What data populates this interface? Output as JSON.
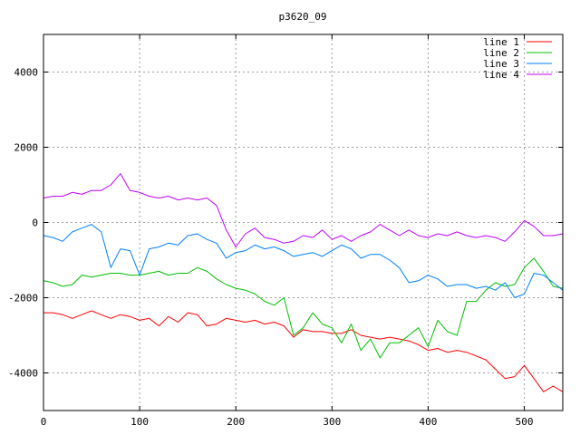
{
  "chart_data": {
    "type": "line",
    "title": "p3620_09",
    "xlabel": "",
    "ylabel": "",
    "xlim": [
      0,
      540
    ],
    "ylim": [
      -5000,
      5000
    ],
    "x_ticks": [
      0,
      100,
      200,
      300,
      400,
      500
    ],
    "y_ticks": [
      -4000,
      -2000,
      0,
      2000,
      4000
    ],
    "grid": true,
    "legend_position": "top-right",
    "series": [
      {
        "name": "line 1",
        "color": "#ff0000",
        "x": [
          0,
          10,
          20,
          30,
          40,
          50,
          60,
          70,
          80,
          90,
          100,
          110,
          120,
          130,
          140,
          150,
          160,
          170,
          180,
          190,
          200,
          210,
          220,
          230,
          240,
          250,
          260,
          270,
          280,
          290,
          300,
          310,
          320,
          330,
          340,
          350,
          360,
          370,
          380,
          390,
          400,
          410,
          420,
          430,
          440,
          450,
          460,
          470,
          480,
          490,
          500,
          510,
          520,
          530,
          540
        ],
        "y": [
          -2400,
          -2400,
          -2450,
          -2550,
          -2450,
          -2350,
          -2450,
          -2550,
          -2450,
          -2500,
          -2600,
          -2550,
          -2750,
          -2500,
          -2650,
          -2400,
          -2450,
          -2750,
          -2700,
          -2550,
          -2600,
          -2650,
          -2600,
          -2700,
          -2650,
          -2750,
          -3050,
          -2850,
          -2900,
          -2900,
          -2950,
          -2950,
          -2850,
          -3000,
          -3050,
          -3100,
          -3050,
          -3100,
          -3150,
          -3250,
          -3400,
          -3350,
          -3450,
          -3400,
          -3450,
          -3550,
          -3650,
          -3900,
          -4150,
          -4100,
          -3800,
          -4150,
          -4500,
          -4350,
          -4500
        ]
      },
      {
        "name": "line 2",
        "color": "#00c000",
        "x": [
          0,
          10,
          20,
          30,
          40,
          50,
          60,
          70,
          80,
          90,
          100,
          110,
          120,
          130,
          140,
          150,
          160,
          170,
          180,
          190,
          200,
          210,
          220,
          230,
          240,
          250,
          260,
          270,
          280,
          290,
          300,
          310,
          320,
          330,
          340,
          350,
          360,
          370,
          380,
          390,
          400,
          410,
          420,
          430,
          440,
          450,
          460,
          470,
          480,
          490,
          500,
          510,
          520,
          530,
          540
        ],
        "y": [
          -1550,
          -1600,
          -1700,
          -1650,
          -1400,
          -1450,
          -1400,
          -1350,
          -1350,
          -1400,
          -1400,
          -1350,
          -1300,
          -1400,
          -1350,
          -1350,
          -1200,
          -1300,
          -1500,
          -1650,
          -1750,
          -1800,
          -1900,
          -2100,
          -2200,
          -2000,
          -3000,
          -2800,
          -2400,
          -2700,
          -2800,
          -3200,
          -2700,
          -3400,
          -3100,
          -3600,
          -3200,
          -3200,
          -3000,
          -2800,
          -3300,
          -2600,
          -2900,
          -3000,
          -2100,
          -2100,
          -1800,
          -1600,
          -1700,
          -1650,
          -1200,
          -950,
          -1300,
          -1700,
          -1750
        ]
      },
      {
        "name": "line 3",
        "color": "#0080ff",
        "x": [
          0,
          10,
          20,
          30,
          40,
          50,
          60,
          70,
          80,
          90,
          100,
          110,
          120,
          130,
          140,
          150,
          160,
          170,
          180,
          190,
          200,
          210,
          220,
          230,
          240,
          250,
          260,
          270,
          280,
          290,
          300,
          310,
          320,
          330,
          340,
          350,
          360,
          370,
          380,
          390,
          400,
          410,
          420,
          430,
          440,
          450,
          460,
          470,
          480,
          490,
          500,
          510,
          520,
          530,
          540
        ],
        "y": [
          -350,
          -400,
          -500,
          -250,
          -150,
          -50,
          -250,
          -1200,
          -700,
          -750,
          -1400,
          -700,
          -650,
          -550,
          -600,
          -350,
          -300,
          -450,
          -550,
          -950,
          -800,
          -750,
          -600,
          -700,
          -650,
          -750,
          -900,
          -850,
          -800,
          -900,
          -750,
          -600,
          -700,
          -950,
          -850,
          -850,
          -1000,
          -1200,
          -1600,
          -1550,
          -1400,
          -1500,
          -1700,
          -1650,
          -1650,
          -1750,
          -1700,
          -1800,
          -1600,
          -2000,
          -1900,
          -1350,
          -1400,
          -1600,
          -1800
        ]
      },
      {
        "name": "line 4",
        "color": "#c000ff",
        "x": [
          0,
          10,
          20,
          30,
          40,
          50,
          60,
          70,
          80,
          90,
          100,
          110,
          120,
          130,
          140,
          150,
          160,
          170,
          180,
          190,
          200,
          210,
          220,
          230,
          240,
          250,
          260,
          270,
          280,
          290,
          300,
          310,
          320,
          330,
          340,
          350,
          360,
          370,
          380,
          390,
          400,
          410,
          420,
          430,
          440,
          450,
          460,
          470,
          480,
          490,
          500,
          510,
          520,
          530,
          540
        ],
        "y": [
          650,
          700,
          700,
          800,
          750,
          850,
          850,
          1000,
          1300,
          850,
          800,
          700,
          650,
          700,
          600,
          650,
          600,
          650,
          450,
          -200,
          -650,
          -300,
          -150,
          -400,
          -450,
          -550,
          -500,
          -350,
          -400,
          -200,
          -450,
          -350,
          -500,
          -350,
          -250,
          -50,
          -200,
          -350,
          -200,
          -350,
          -400,
          -300,
          -350,
          -250,
          -350,
          -400,
          -350,
          -400,
          -500,
          -250,
          50,
          -100,
          -350,
          -350,
          -300
        ]
      }
    ]
  }
}
